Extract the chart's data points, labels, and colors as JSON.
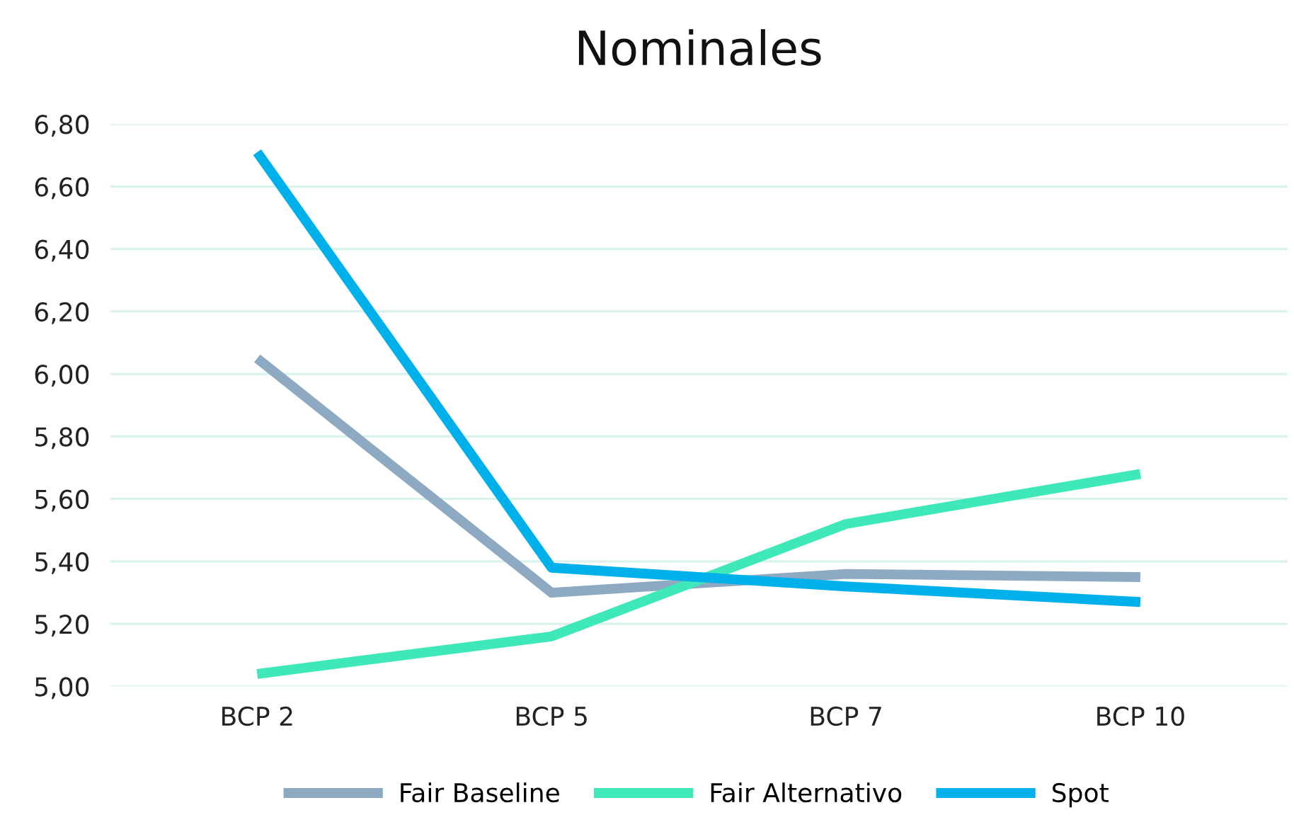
{
  "chart_data": {
    "type": "line",
    "title": "Nominales",
    "categories": [
      "BCP 2",
      "BCP 5",
      "BCP 7",
      "BCP 10"
    ],
    "series": [
      {
        "name": "Fair Baseline",
        "color": "#8eaac3",
        "values": [
          6.05,
          5.3,
          5.36,
          5.35
        ]
      },
      {
        "name": "Fair Alternativo",
        "color": "#3ee8b8",
        "values": [
          5.04,
          5.16,
          5.52,
          5.68
        ]
      },
      {
        "name": "Spot",
        "color": "#00b0ea",
        "values": [
          6.71,
          5.38,
          5.32,
          5.27
        ]
      }
    ],
    "ylim": [
      5.0,
      6.8
    ],
    "yticks": [
      {
        "value": 5.0,
        "label": "5,00"
      },
      {
        "value": 5.2,
        "label": "5,20"
      },
      {
        "value": 5.4,
        "label": "5,40"
      },
      {
        "value": 5.6,
        "label": "5,60"
      },
      {
        "value": 5.8,
        "label": "5,80"
      },
      {
        "value": 6.0,
        "label": "6,00"
      },
      {
        "value": 6.2,
        "label": "6,20"
      },
      {
        "value": 6.4,
        "label": "6,40"
      },
      {
        "value": 6.6,
        "label": "6,60"
      },
      {
        "value": 6.8,
        "label": "6,80"
      }
    ],
    "grid": "y",
    "legend": "bottom",
    "marker": "none",
    "line_style": "solid"
  }
}
